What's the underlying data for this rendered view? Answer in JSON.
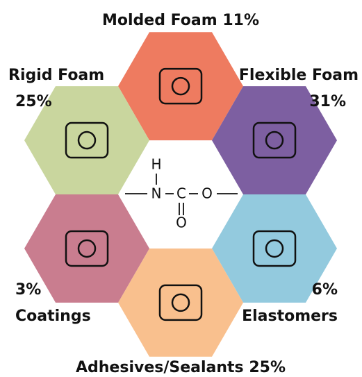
{
  "segments": [
    {
      "label": "Molded Foam",
      "share": "11%",
      "color": "#ee7b60"
    },
    {
      "label": "Flexible Foam",
      "share": "31%",
      "color": "#7d5fa1"
    },
    {
      "label": "Elastomers",
      "share": "6%",
      "color": "#93cade"
    },
    {
      "label": "Adhesives/Sealants",
      "share": "25%",
      "color": "#f9c08e"
    },
    {
      "label": "Coatings",
      "share": "3%",
      "color": "#c97d8f"
    },
    {
      "label": "Rigid Foam",
      "share": "25%",
      "color": "#c9d69e"
    }
  ],
  "structure": {
    "atoms": [
      "H",
      "N",
      "C",
      "O",
      "O"
    ]
  }
}
